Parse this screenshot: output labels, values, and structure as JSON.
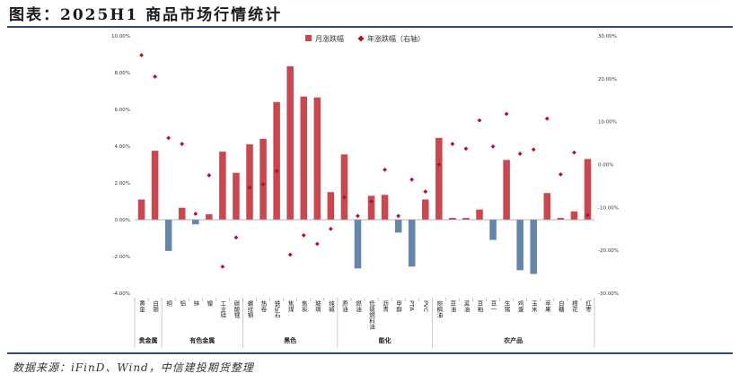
{
  "title": "图表：2025H1 商品市场行情统计",
  "source": "数据来源：iFinD、Wind，中信建投期货整理",
  "colors": {
    "bar_positive": "#c9474f",
    "bar_negative": "#6585a9",
    "marker": "#b8101c",
    "axis": "#888888"
  },
  "chart_data": {
    "type": "bar",
    "legend": {
      "placement": "top-center",
      "bar_label": "月涨跌幅",
      "marker_label": "年涨跌幅（右轴）"
    },
    "left_axis": {
      "ylim": [
        -4,
        10
      ],
      "ticks": [
        "10.00%",
        "8.00%",
        "6.00%",
        "4.00%",
        "2.00%",
        "0.00%",
        "-2.00%",
        "-4.00%"
      ]
    },
    "right_axis": {
      "ylim": [
        -30,
        30
      ],
      "ticks": [
        "30.00%",
        "20.00%",
        "10.00%",
        "0.00%",
        "-10.00%",
        "-20.00%",
        "-30.00%"
      ]
    },
    "categories": [
      "黄金",
      "白银",
      "铜",
      "铝",
      "锌",
      "镍",
      "工业硅",
      "碳酸锂",
      "螺纹钢",
      "热卷",
      "铁矿石",
      "焦煤",
      "焦炭",
      "玻璃",
      "纯碱",
      "原油",
      "燃油",
      "低硫燃料油",
      "沥青",
      "甲醇",
      "PTA",
      "PVC",
      "棕榈油",
      "豆油",
      "菜油",
      "豆粕",
      "豆一",
      "生猪",
      "鸡蛋",
      "玉米",
      "苹果",
      "白糖",
      "棉花",
      "红枣"
    ],
    "groups": [
      {
        "label": "贵金属",
        "count": 2
      },
      {
        "label": "有色金属",
        "count": 6
      },
      {
        "label": "黑色",
        "count": 7
      },
      {
        "label": "能化",
        "count": 7
      },
      {
        "label": "农产品",
        "count": 12
      }
    ],
    "series": [
      {
        "name": "月涨跌幅",
        "axis": "left",
        "render": "bar",
        "values": [
          1.1,
          3.75,
          -1.7,
          0.65,
          -0.25,
          0.3,
          3.7,
          2.55,
          4.1,
          4.4,
          6.4,
          8.35,
          6.7,
          6.65,
          1.5,
          3.55,
          -2.65,
          1.3,
          1.35,
          -0.7,
          -2.55,
          1.1,
          4.45,
          0.1,
          0.1,
          0.55,
          -1.1,
          3.25,
          -2.75,
          -2.95,
          1.45,
          0.1,
          0.45,
          3.3
        ]
      },
      {
        "name": "年涨跌幅（右轴）",
        "axis": "right",
        "render": "marker",
        "values": [
          25.5,
          20.5,
          6.2,
          4.8,
          -11.5,
          -2.5,
          -23.8,
          -17.0,
          -5.4,
          -4.6,
          -1.5,
          -21.0,
          -16.5,
          -18.5,
          -15.0,
          -7.6,
          -12.0,
          -8.6,
          -1.2,
          -12.0,
          -3.5,
          -6.3,
          0.0,
          4.8,
          3.7,
          10.3,
          4.2,
          11.8,
          2.5,
          3.5,
          10.7,
          -2.3,
          2.8,
          -11.8
        ]
      }
    ]
  }
}
